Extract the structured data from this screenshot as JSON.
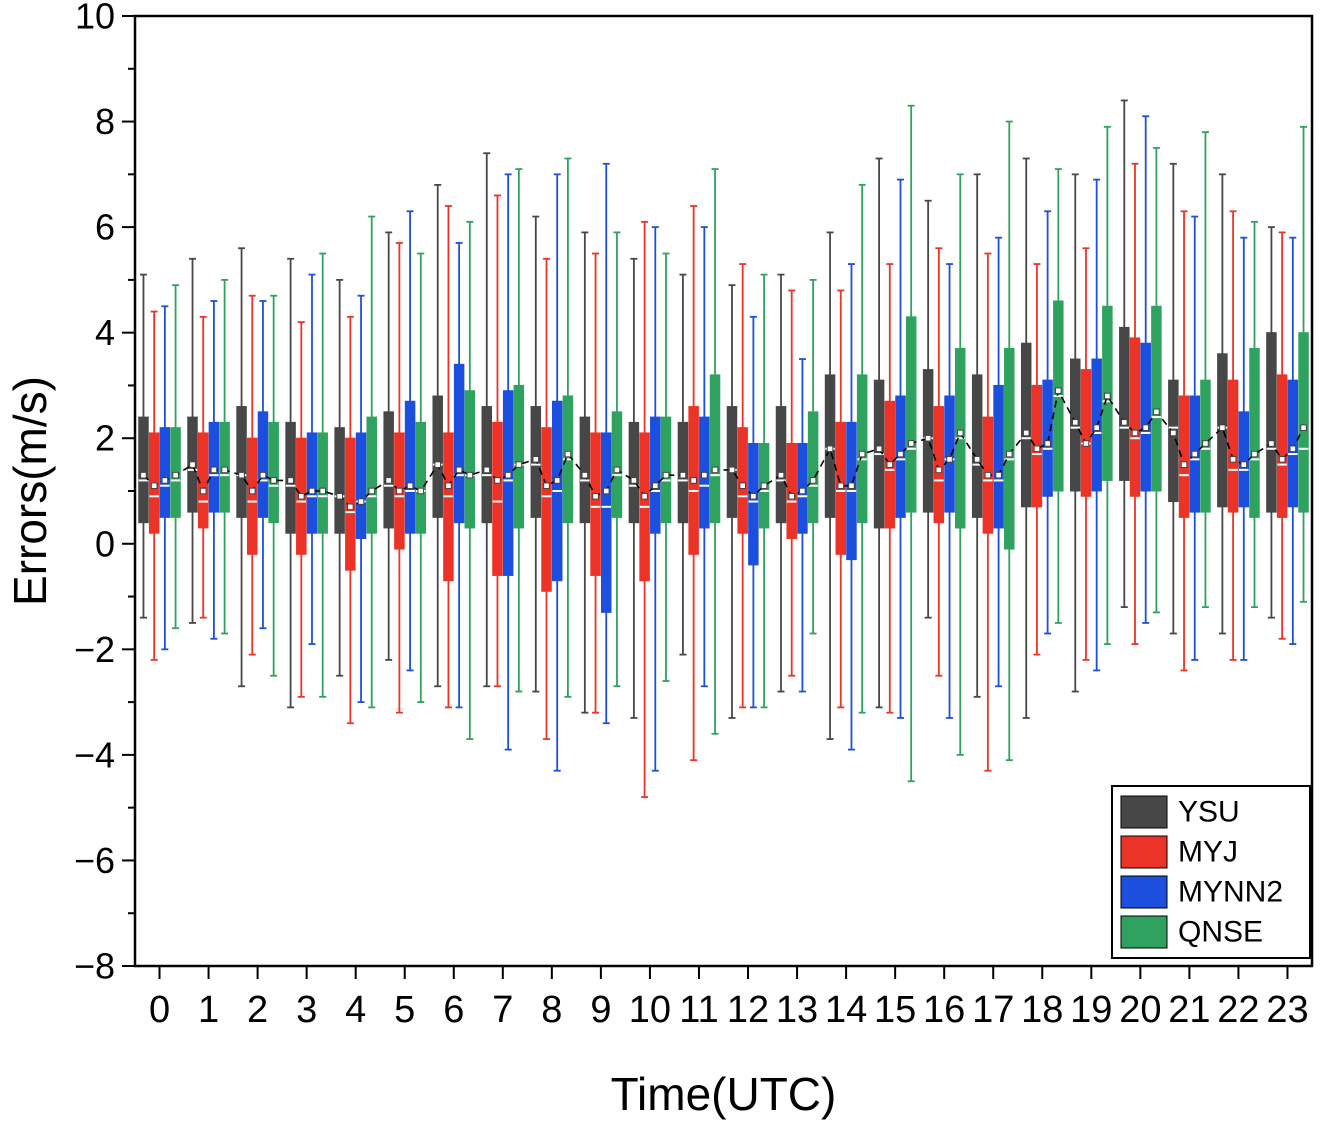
{
  "figure": {
    "xlabel": "Time(UTC)",
    "ylabel": "Errors(m/s)"
  },
  "chart_data": {
    "type": "boxplot",
    "title": "",
    "xlabel": "Time(UTC)",
    "ylabel": "Errors(m/s)",
    "ylim": [
      -8,
      10
    ],
    "ytick_step": 2,
    "grid": false,
    "legend_position": "lower-right-inside",
    "categories": [
      "0",
      "1",
      "2",
      "3",
      "4",
      "5",
      "6",
      "7",
      "8",
      "9",
      "10",
      "11",
      "12",
      "13",
      "14",
      "15",
      "16",
      "17",
      "18",
      "19",
      "20",
      "21",
      "22",
      "23"
    ],
    "box_stats_order": [
      "whisker_low",
      "q1",
      "median",
      "q3",
      "whisker_high",
      "mean"
    ],
    "median_color": "#ffffff",
    "mean_marker": "open-square",
    "mean_line": {
      "color": "#000000",
      "style": "dashed"
    },
    "series": [
      {
        "name": "YSU",
        "color": "#474747",
        "boxes": [
          [
            -1.4,
            0.4,
            1.2,
            2.4,
            5.1,
            1.3
          ],
          [
            -1.5,
            0.6,
            1.4,
            2.4,
            5.4,
            1.5
          ],
          [
            -2.7,
            0.5,
            1.3,
            2.6,
            5.6,
            1.3
          ],
          [
            -3.1,
            0.2,
            1.1,
            2.3,
            5.4,
            1.2
          ],
          [
            -2.5,
            0.2,
            0.9,
            2.2,
            5.0,
            0.9
          ],
          [
            -2.2,
            0.3,
            1.1,
            2.5,
            5.9,
            1.2
          ],
          [
            -2.7,
            0.5,
            1.5,
            2.8,
            6.8,
            1.5
          ],
          [
            -2.7,
            0.4,
            1.3,
            2.6,
            7.4,
            1.4
          ],
          [
            -2.8,
            0.5,
            1.5,
            2.6,
            6.2,
            1.6
          ],
          [
            -3.2,
            0.4,
            1.2,
            2.4,
            5.9,
            1.3
          ],
          [
            -3.3,
            0.4,
            1.1,
            2.3,
            5.4,
            1.2
          ],
          [
            -2.1,
            0.4,
            1.2,
            2.3,
            5.1,
            1.3
          ],
          [
            -3.3,
            0.5,
            1.4,
            2.6,
            4.9,
            1.4
          ],
          [
            -2.8,
            0.4,
            1.2,
            2.6,
            5.1,
            1.3
          ],
          [
            -3.7,
            0.5,
            1.8,
            3.2,
            5.9,
            1.8
          ],
          [
            -3.1,
            0.3,
            1.7,
            3.1,
            7.3,
            1.8
          ],
          [
            -1.4,
            0.6,
            2.0,
            3.3,
            6.5,
            2.0
          ],
          [
            -2.9,
            0.5,
            1.5,
            3.2,
            7.0,
            1.6
          ],
          [
            -3.3,
            0.7,
            2.0,
            3.8,
            7.3,
            2.1
          ],
          [
            -2.8,
            1.0,
            2.2,
            3.5,
            7.0,
            2.3
          ],
          [
            -1.2,
            1.2,
            2.2,
            4.1,
            8.4,
            2.3
          ],
          [
            -1.7,
            0.8,
            2.2,
            3.1,
            7.2,
            2.1
          ],
          [
            -1.7,
            0.7,
            2.2,
            3.6,
            7.0,
            2.2
          ],
          [
            -1.4,
            0.6,
            1.8,
            4.0,
            6.0,
            1.9
          ]
        ]
      },
      {
        "name": "MYJ",
        "color": "#ec3327",
        "boxes": [
          [
            -2.2,
            0.2,
            0.9,
            2.1,
            4.4,
            1.1
          ],
          [
            -1.4,
            0.3,
            0.8,
            2.1,
            4.3,
            1.0
          ],
          [
            -2.1,
            -0.2,
            0.8,
            2.0,
            4.7,
            1.0
          ],
          [
            -2.9,
            -0.2,
            0.8,
            2.0,
            4.2,
            0.9
          ],
          [
            -3.4,
            -0.5,
            0.6,
            2.0,
            4.3,
            0.7
          ],
          [
            -3.2,
            -0.1,
            0.9,
            2.1,
            5.7,
            1.0
          ],
          [
            -3.1,
            -0.7,
            0.9,
            2.1,
            6.4,
            1.1
          ],
          [
            -2.7,
            -0.6,
            0.8,
            2.3,
            6.6,
            1.2
          ],
          [
            -3.7,
            -0.9,
            0.9,
            2.2,
            5.4,
            1.1
          ],
          [
            -3.2,
            -0.6,
            0.7,
            2.1,
            5.5,
            0.9
          ],
          [
            -4.8,
            -0.7,
            0.7,
            2.1,
            6.1,
            0.9
          ],
          [
            -4.1,
            -0.2,
            1.0,
            2.6,
            6.4,
            1.2
          ],
          [
            -3.1,
            0.2,
            0.9,
            2.2,
            5.3,
            1.1
          ],
          [
            -2.5,
            0.1,
            0.8,
            1.9,
            4.8,
            0.9
          ],
          [
            -3.1,
            -0.2,
            1.0,
            2.3,
            4.8,
            1.1
          ],
          [
            -3.2,
            0.3,
            1.4,
            2.7,
            5.3,
            1.5
          ],
          [
            -2.5,
            0.4,
            1.2,
            2.6,
            5.6,
            1.4
          ],
          [
            -4.3,
            0.2,
            1.2,
            2.4,
            5.5,
            1.3
          ],
          [
            -2.1,
            0.7,
            1.7,
            3.0,
            5.3,
            1.8
          ],
          [
            -2.2,
            0.9,
            1.9,
            3.3,
            5.6,
            1.9
          ],
          [
            -1.9,
            0.9,
            2.0,
            3.9,
            7.2,
            2.1
          ],
          [
            -2.4,
            0.5,
            1.3,
            2.8,
            6.3,
            1.5
          ],
          [
            -2.2,
            0.6,
            1.4,
            3.1,
            6.3,
            1.6
          ],
          [
            -1.8,
            0.5,
            1.5,
            3.2,
            5.9,
            1.6
          ]
        ]
      },
      {
        "name": "MYNN2",
        "color": "#1d4fdf",
        "boxes": [
          [
            -2.0,
            0.5,
            1.1,
            2.2,
            4.5,
            1.2
          ],
          [
            -1.8,
            0.6,
            1.3,
            2.3,
            4.6,
            1.4
          ],
          [
            -1.6,
            0.5,
            1.2,
            2.5,
            4.6,
            1.3
          ],
          [
            -1.9,
            0.2,
            0.9,
            2.1,
            5.1,
            1.0
          ],
          [
            -3.0,
            0.1,
            0.8,
            2.1,
            4.7,
            0.8
          ],
          [
            -2.4,
            0.2,
            1.0,
            2.7,
            6.3,
            1.1
          ],
          [
            -3.1,
            0.4,
            1.3,
            3.4,
            5.7,
            1.4
          ],
          [
            -3.9,
            -0.6,
            1.2,
            2.9,
            7.0,
            1.3
          ],
          [
            -4.3,
            -0.7,
            1.0,
            2.7,
            7.0,
            1.2
          ],
          [
            -3.4,
            -1.3,
            0.7,
            2.1,
            7.2,
            1.0
          ],
          [
            -4.3,
            0.2,
            1.0,
            2.4,
            6.0,
            1.1
          ],
          [
            -2.7,
            0.3,
            1.1,
            2.4,
            6.0,
            1.3
          ],
          [
            -3.1,
            -0.4,
            0.8,
            1.9,
            4.3,
            0.9
          ],
          [
            -2.8,
            0.2,
            0.9,
            1.9,
            3.5,
            1.0
          ],
          [
            -3.9,
            -0.3,
            1.0,
            2.3,
            5.3,
            1.1
          ],
          [
            -3.3,
            0.5,
            1.6,
            2.8,
            6.9,
            1.7
          ],
          [
            -3.3,
            0.6,
            1.6,
            2.8,
            5.3,
            1.6
          ],
          [
            -2.7,
            0.3,
            1.2,
            3.0,
            5.8,
            1.3
          ],
          [
            -1.7,
            0.9,
            1.8,
            3.1,
            6.3,
            1.9
          ],
          [
            -2.4,
            1.0,
            2.1,
            3.5,
            6.9,
            2.2
          ],
          [
            -1.5,
            1.0,
            2.1,
            3.8,
            8.1,
            2.2
          ],
          [
            -2.2,
            0.6,
            1.6,
            2.8,
            6.2,
            1.7
          ],
          [
            -2.2,
            0.7,
            1.4,
            2.5,
            5.8,
            1.5
          ],
          [
            -1.9,
            0.7,
            1.7,
            3.1,
            5.8,
            1.8
          ]
        ]
      },
      {
        "name": "QNSE",
        "color": "#2fa25f",
        "boxes": [
          [
            -1.6,
            0.5,
            1.2,
            2.2,
            4.9,
            1.3
          ],
          [
            -1.7,
            0.6,
            1.3,
            2.3,
            5.0,
            1.4
          ],
          [
            -2.5,
            0.4,
            1.1,
            2.3,
            4.7,
            1.2
          ],
          [
            -2.9,
            0.2,
            0.9,
            2.1,
            5.5,
            1.0
          ],
          [
            -3.1,
            0.2,
            0.9,
            2.4,
            6.2,
            1.0
          ],
          [
            -3.0,
            0.2,
            1.0,
            2.3,
            5.5,
            1.0
          ],
          [
            -3.7,
            0.3,
            1.3,
            2.9,
            6.1,
            1.3
          ],
          [
            -2.8,
            0.3,
            1.5,
            3.0,
            7.1,
            1.5
          ],
          [
            -2.9,
            0.4,
            1.6,
            2.8,
            7.3,
            1.7
          ],
          [
            -2.7,
            0.5,
            1.3,
            2.5,
            5.9,
            1.4
          ],
          [
            -2.6,
            0.4,
            1.2,
            2.4,
            5.5,
            1.3
          ],
          [
            -3.6,
            0.4,
            1.3,
            3.2,
            7.1,
            1.4
          ],
          [
            -3.1,
            0.3,
            1.0,
            1.9,
            5.1,
            1.1
          ],
          [
            -1.7,
            0.4,
            1.1,
            2.5,
            5.0,
            1.2
          ],
          [
            -3.2,
            0.4,
            1.6,
            3.2,
            6.8,
            1.7
          ],
          [
            -4.5,
            0.6,
            1.8,
            4.3,
            8.3,
            1.9
          ],
          [
            -4.0,
            0.3,
            2.0,
            3.7,
            7.0,
            2.1
          ],
          [
            -4.1,
            -0.1,
            1.6,
            3.7,
            8.0,
            1.7
          ],
          [
            -1.5,
            1.0,
            2.8,
            4.6,
            7.1,
            2.9
          ],
          [
            -1.9,
            1.2,
            2.7,
            4.5,
            7.9,
            2.8
          ],
          [
            -1.3,
            1.0,
            2.4,
            4.5,
            7.5,
            2.5
          ],
          [
            -1.2,
            0.6,
            1.8,
            3.1,
            7.8,
            1.9
          ],
          [
            -1.2,
            0.5,
            1.6,
            3.7,
            6.1,
            1.7
          ],
          [
            -1.1,
            0.6,
            1.8,
            4.0,
            7.9,
            2.2
          ]
        ]
      }
    ]
  }
}
